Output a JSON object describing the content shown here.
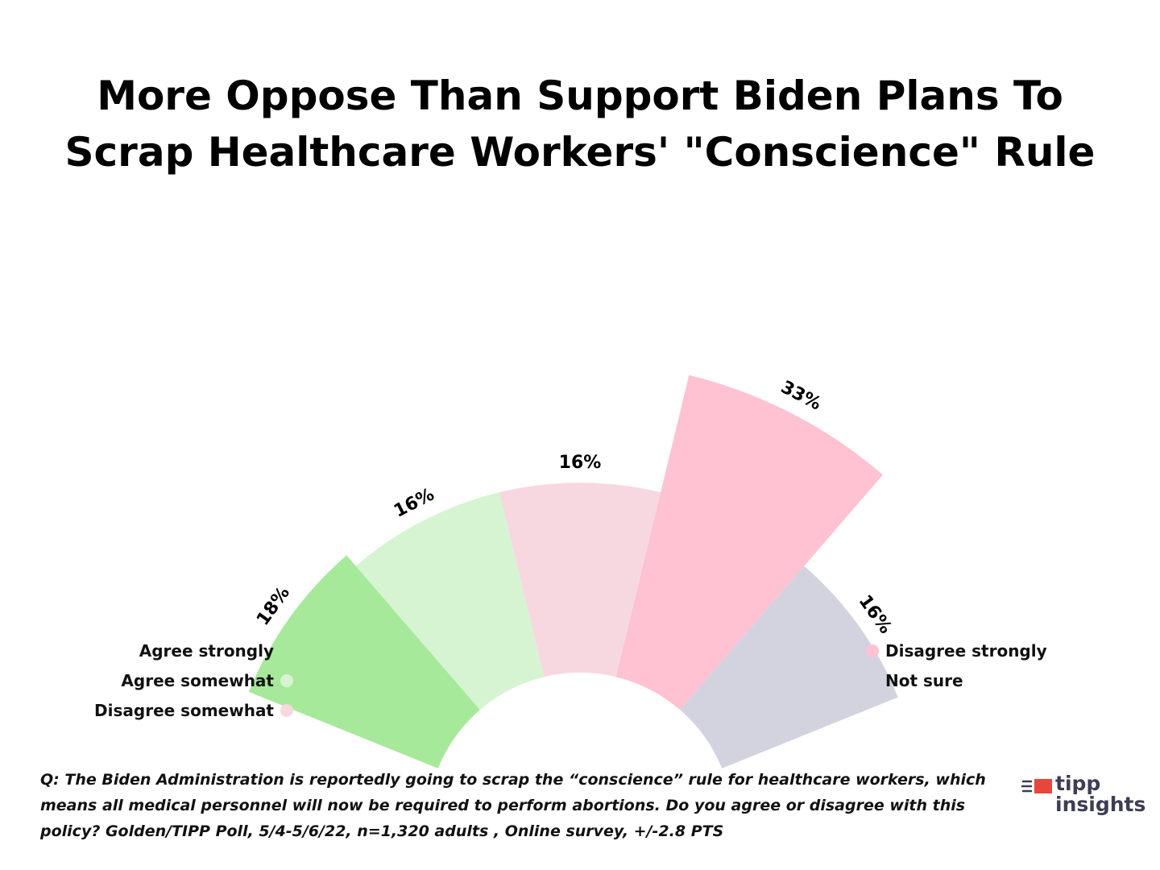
{
  "title": {
    "line1": "More Oppose Than Support Biden Plans To",
    "line2": "Scrap Healthcare Workers' \"Conscience\" Rule"
  },
  "chart_data": {
    "type": "polar-bar",
    "categories": [
      "Agree strongly",
      "Agree somewhat",
      "Disagree somewhat",
      "Disagree strongly",
      "Not sure"
    ],
    "values": [
      18,
      16,
      16,
      33,
      16
    ],
    "value_labels": [
      "18%",
      "16%",
      "16%",
      "33%",
      "16%"
    ],
    "colors": [
      "#a7e99b",
      "#d6f4d2",
      "#f7d8e1",
      "#fec2d2",
      "#d2d3df"
    ],
    "legend": {
      "left": [
        "Agree strongly",
        "Agree somewhat",
        "Disagree somewhat"
      ],
      "right": [
        "Disagree strongly",
        "Not sure"
      ]
    },
    "legend_placement": "bottom-left and bottom-right"
  },
  "footnote": "Q:  The Biden Administration is reportedly going to scrap the “conscience” rule for healthcare workers, which means all medical personnel will now be required to perform abortions. Do you agree or disagree with this policy? Golden/TIPP Poll, 5/4-5/6/22, n=1,320 adults , Online survey, +/-2.8 PTS",
  "logo": {
    "line1": "tipp",
    "line2": "insights",
    "accent_color": "#e8453c",
    "text_color": "#3d3d55"
  }
}
